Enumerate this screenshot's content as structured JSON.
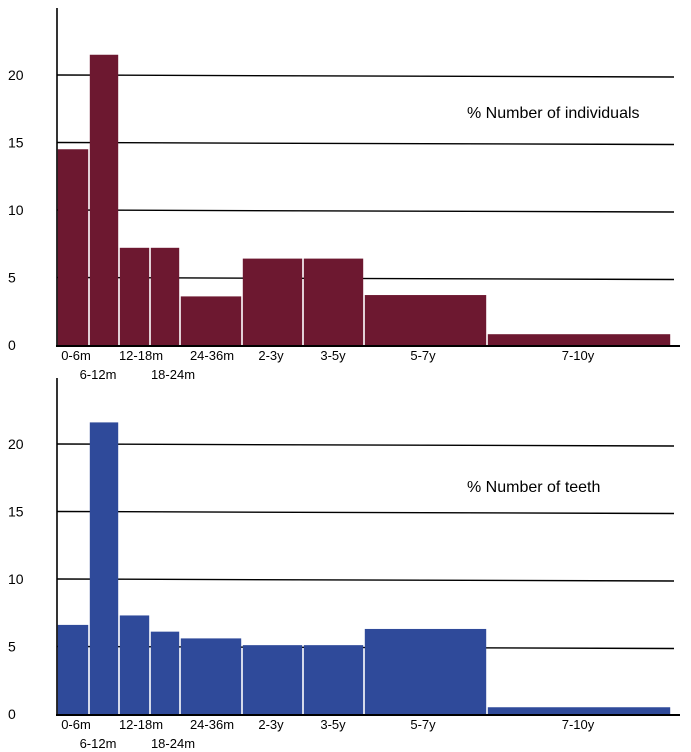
{
  "chart_data": [
    {
      "type": "bar",
      "categories": [
        "0-6m",
        "6-12m",
        "12-18m",
        "18-24m",
        "24-36m",
        "2-3y",
        "3-5y",
        "5-7y",
        "7-10y"
      ],
      "values": [
        14.5,
        21.5,
        7.2,
        7.2,
        3.6,
        6.4,
        6.4,
        3.7,
        0.8
      ],
      "ylim": [
        0,
        25
      ],
      "yticks": [
        0,
        5,
        10,
        15,
        20
      ],
      "annotation": "% Number of individuals",
      "color": "#6d1830",
      "grid": true
    },
    {
      "type": "bar",
      "categories": [
        "0-6m",
        "6-12m",
        "12-18m",
        "18-24m",
        "24-36m",
        "2-3y",
        "3-5y",
        "5-7y",
        "7-10y"
      ],
      "values": [
        6.6,
        21.6,
        7.3,
        6.1,
        5.6,
        5.1,
        5.1,
        6.3,
        0.5
      ],
      "ylim": [
        0,
        25
      ],
      "yticks": [
        0,
        5,
        10,
        15,
        20
      ],
      "annotation": "% Number of teeth",
      "color": "#2f4a9a",
      "grid": true
    }
  ]
}
